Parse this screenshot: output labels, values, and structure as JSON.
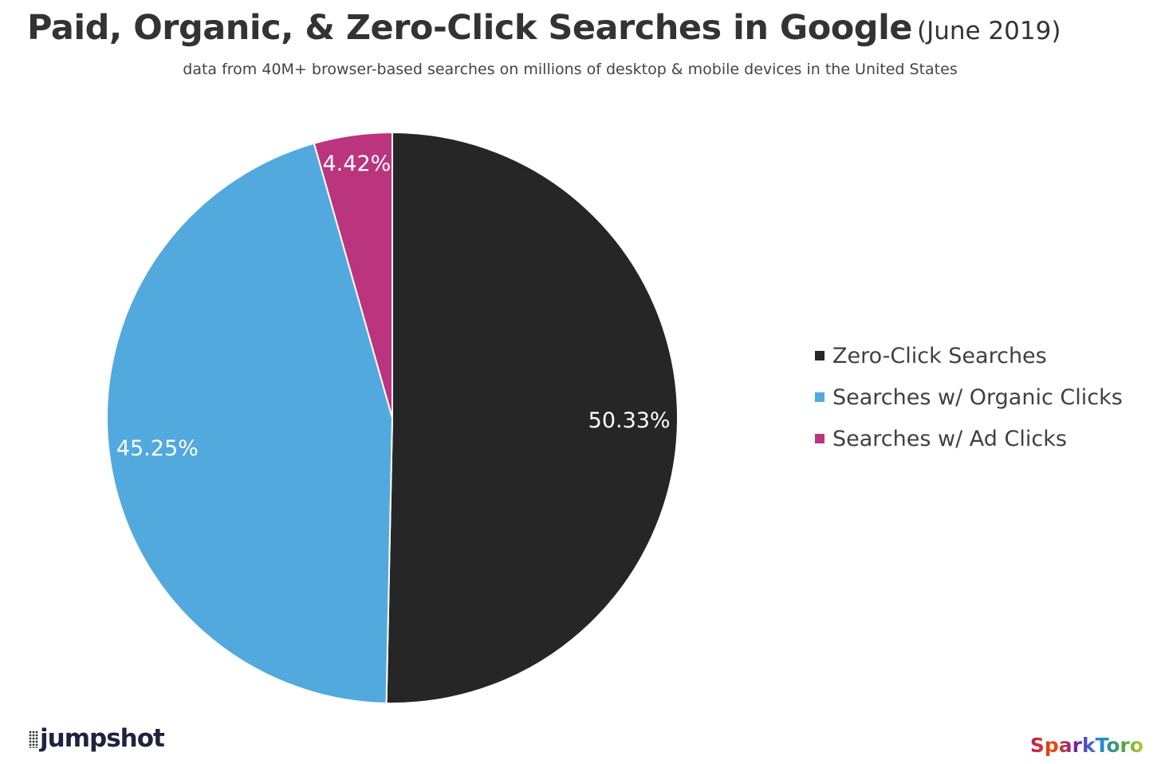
{
  "chart_data": {
    "type": "pie",
    "title": "Paid, Organic, & Zero-Click Searches in Google",
    "title_suffix": "(June 2019)",
    "subtitle": "data from 40M+ browser-based searches on millions of desktop & mobile devices in the United States",
    "legend_position": "right",
    "slices": [
      {
        "name": "Zero-Click Searches",
        "value": 50.33,
        "label": "50.33%",
        "color": "#262626"
      },
      {
        "name": "Searches w/ Organic Clicks",
        "value": 45.25,
        "label": "45.25%",
        "color": "#52a9de"
      },
      {
        "name": "Searches w/ Ad Clicks",
        "value": 4.42,
        "label": "4.42%",
        "color": "#bb347e"
      }
    ]
  },
  "logos": {
    "left": "jumpshot",
    "right": "SparkToro"
  }
}
